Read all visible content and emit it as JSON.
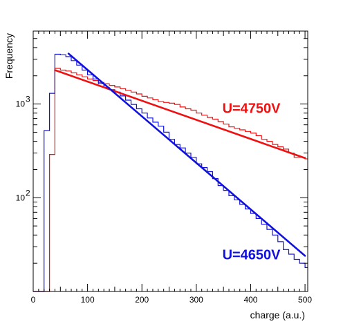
{
  "chart_data": {
    "type": "line",
    "title": "",
    "xlabel": "charge (a.u.)",
    "ylabel": "Frequency",
    "xlim": [
      0,
      505
    ],
    "ylim": [
      10,
      6000
    ],
    "yscale": "log",
    "x_ticks": [
      0,
      100,
      200,
      300,
      400,
      500
    ],
    "y_ticks": [
      100,
      1000
    ],
    "y_tick_labels": [
      {
        "base": "10",
        "exp": "2"
      },
      {
        "base": "10",
        "exp": "3"
      }
    ],
    "grid": false,
    "annotations": [
      {
        "text": "U=4750V",
        "color": "#ee1111",
        "x": 348,
        "y": 800
      },
      {
        "text": "U=4650V",
        "color": "#1111dd",
        "x": 348,
        "y": 22
      }
    ],
    "series": [
      {
        "label": "U=4750V",
        "color": "#ee1111",
        "histogram": {
          "edges": [
            0,
            10,
            20,
            30,
            40,
            50,
            60,
            70,
            80,
            90,
            100,
            110,
            120,
            130,
            140,
            150,
            160,
            170,
            180,
            190,
            200,
            210,
            220,
            230,
            240,
            250,
            260,
            270,
            280,
            290,
            300,
            310,
            320,
            330,
            340,
            350,
            360,
            370,
            380,
            390,
            400,
            410,
            420,
            430,
            440,
            450,
            460,
            470,
            480,
            490,
            500,
            505
          ],
          "counts": [
            10,
            10,
            10,
            290,
            2400,
            2300,
            2250,
            2150,
            2050,
            1950,
            1850,
            1780,
            1700,
            1640,
            1580,
            1520,
            1460,
            1400,
            1340,
            1280,
            1210,
            1160,
            1110,
            1060,
            1040,
            1020,
            990,
            930,
            890,
            860,
            800,
            760,
            720,
            690,
            650,
            610,
            570,
            550,
            530,
            510,
            490,
            460,
            420,
            400,
            370,
            350,
            330,
            300,
            270,
            270,
            260
          ]
        },
        "fit": {
          "x": [
            40,
            500
          ],
          "y": [
            2300,
            265
          ]
        }
      },
      {
        "label": "U=4650V",
        "color": "#1111dd",
        "histogram": {
          "edges": [
            0,
            10,
            20,
            30,
            40,
            50,
            60,
            70,
            80,
            90,
            100,
            110,
            120,
            130,
            140,
            150,
            160,
            170,
            180,
            190,
            200,
            210,
            220,
            230,
            240,
            250,
            260,
            270,
            280,
            290,
            300,
            310,
            320,
            330,
            340,
            350,
            360,
            370,
            380,
            390,
            400,
            410,
            420,
            430,
            440,
            450,
            460,
            470,
            480,
            490,
            500,
            505
          ],
          "counts": [
            10,
            10,
            520,
            1300,
            3400,
            3350,
            3200,
            2900,
            2600,
            2300,
            2050,
            1850,
            1650,
            1500,
            1420,
            1340,
            1220,
            1100,
            990,
            890,
            800,
            710,
            640,
            580,
            500,
            420,
            370,
            340,
            300,
            270,
            230,
            210,
            190,
            160,
            135,
            120,
            105,
            95,
            85,
            76,
            68,
            60,
            52,
            46,
            40,
            34,
            28,
            25,
            22,
            20,
            18
          ]
        },
        "fit": {
          "x": [
            65,
            500
          ],
          "y": [
            3450,
            24
          ]
        }
      }
    ]
  }
}
